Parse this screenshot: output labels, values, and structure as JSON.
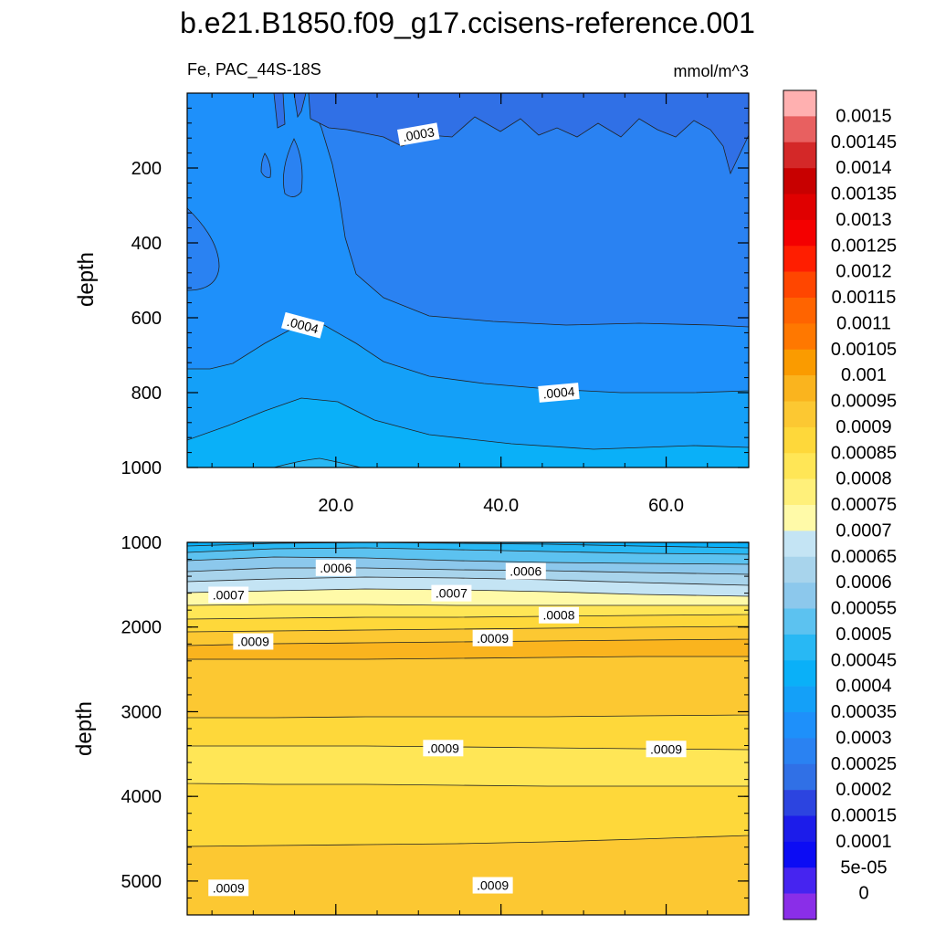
{
  "chart_data": {
    "type": "contour",
    "title": "b.e21.B1850.f09_g17.ccisens-reference.001",
    "variable": "Fe",
    "region": "PAC_44S-18S",
    "left_string": "Fe, PAC_44S-18S",
    "units": "mmol/m^3",
    "xlim": [
      2,
      70
    ],
    "x_ticks": [
      20,
      40,
      60
    ],
    "x_tick_labels": [
      "20.0",
      "40.0",
      "60.0"
    ],
    "panels": [
      {
        "name": "upper-ocean",
        "ylabel": "depth",
        "ylim": [
          0,
          1000
        ],
        "y_ticks": [
          200,
          400,
          600,
          800,
          1000
        ],
        "y_tick_labels": [
          "200",
          "400",
          "600",
          "800",
          "1000"
        ],
        "contour_labels": [
          {
            "text": ".0003",
            "x": 30,
            "y": 110,
            "angle": -10
          },
          {
            "text": ".0004",
            "x": 16,
            "y": 620,
            "angle": 15
          },
          {
            "text": ".0004",
            "x": 47,
            "y": 800,
            "angle": -5
          }
        ]
      },
      {
        "name": "deep-ocean",
        "ylabel": "depth",
        "ylim": [
          1000,
          5400
        ],
        "y_ticks": [
          1000,
          2000,
          3000,
          4000,
          5000
        ],
        "y_tick_labels": [
          "1000",
          "2000",
          "3000",
          "4000",
          "5000"
        ],
        "contour_labels": [
          {
            "text": ".0006",
            "x": 20,
            "y": 1300
          },
          {
            "text": ".0006",
            "x": 43,
            "y": 1340
          },
          {
            "text": ".0007",
            "x": 7,
            "y": 1620
          },
          {
            "text": ".0007",
            "x": 34,
            "y": 1600
          },
          {
            "text": ".0008",
            "x": 47,
            "y": 1860
          },
          {
            "text": ".0009",
            "x": 10,
            "y": 2170
          },
          {
            "text": ".0009",
            "x": 39,
            "y": 2130
          },
          {
            "text": ".0009",
            "x": 33,
            "y": 3430
          },
          {
            "text": ".0009",
            "x": 60,
            "y": 3440
          },
          {
            "text": ".0009",
            "x": 7,
            "y": 5080
          },
          {
            "text": ".0009",
            "x": 39,
            "y": 5050
          }
        ]
      }
    ],
    "colorbar": {
      "labels": [
        "0.0015",
        "0.00145",
        "0.0014",
        "0.00135",
        "0.0013",
        "0.00125",
        "0.0012",
        "0.00115",
        "0.0011",
        "0.00105",
        "0.001",
        "0.00095",
        "0.0009",
        "0.00085",
        "0.0008",
        "0.00075",
        "0.0007",
        "0.00065",
        "0.0006",
        "0.00055",
        "0.0005",
        "0.00045",
        "0.0004",
        "0.00035",
        "0.0003",
        "0.00025",
        "0.0002",
        "0.00015",
        "0.0001",
        "5e-05",
        "0"
      ],
      "colors": [
        "#ffb0b0",
        "#e86060",
        "#d42828",
        "#c80000",
        "#e00000",
        "#f40000",
        "#ff1e00",
        "#ff4600",
        "#ff6400",
        "#ff7800",
        "#fa9b00",
        "#fab41e",
        "#fcc832",
        "#fed83a",
        "#ffe656",
        "#fff07a",
        "#fffaa8",
        "#c4e4f4",
        "#a8d4ec",
        "#8cc8ec",
        "#5cc2f0",
        "#28b8f4",
        "#0ab0f8",
        "#14a0f8",
        "#1e90fa",
        "#2a82f2",
        "#3070e6",
        "#2c44e0",
        "#1c1cea",
        "#0c0cf4",
        "#4624f0",
        "#8a2ee8"
      ]
    }
  }
}
